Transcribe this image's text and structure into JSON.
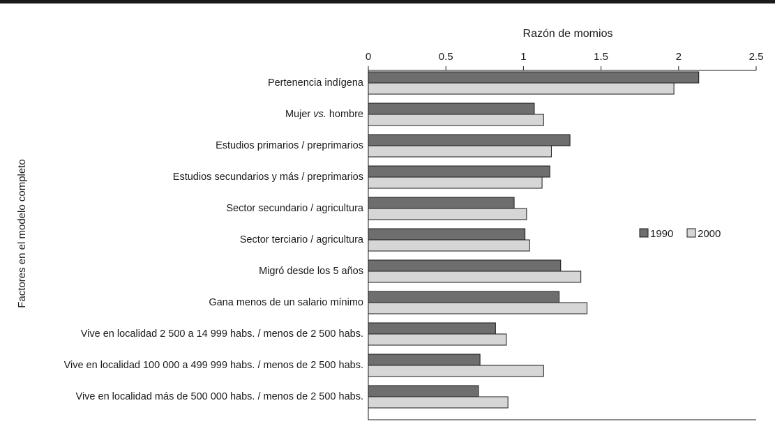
{
  "chart_data": {
    "type": "bar",
    "orientation": "horizontal",
    "title": "Razón de momios",
    "xlabel": "Razón de momios",
    "ylabel": "Factores en el modelo completo",
    "xlim": [
      0,
      2.5
    ],
    "xticks": [
      "0",
      "0.5",
      "1",
      "1.5",
      "2",
      "2.5"
    ],
    "xtick_values": [
      0,
      0.5,
      1,
      1.5,
      2,
      2.5
    ],
    "grid": false,
    "legend_position": "right",
    "categories": [
      "Pertenencia indígena",
      "Mujer vs. hombre",
      "Estudios primarios / preprimarios",
      "Estudios secundarios y más / preprimarios",
      "Sector secundario / agricultura",
      "Sector terciario / agricultura",
      "Migró desde los 5 años",
      "Gana menos de un salario mínimo",
      "Vive en localidad 2 500 a 14 999 habs. / menos de 2 500 habs.",
      "Vive en localidad 100 000 a 499 999 habs. / menos de 2 500 habs.",
      "Vive en localidad más de 500 000 habs. / menos de 2 500 habs."
    ],
    "series": [
      {
        "name": "1990",
        "color": "#6e6e6e",
        "values": [
          2.13,
          1.07,
          1.3,
          1.17,
          0.94,
          1.01,
          1.24,
          1.23,
          0.82,
          0.72,
          0.71
        ]
      },
      {
        "name": "2000",
        "color": "#d6d6d6",
        "values": [
          1.97,
          1.13,
          1.18,
          1.12,
          1.02,
          1.04,
          1.37,
          1.41,
          0.89,
          1.13,
          0.9
        ]
      }
    ]
  }
}
